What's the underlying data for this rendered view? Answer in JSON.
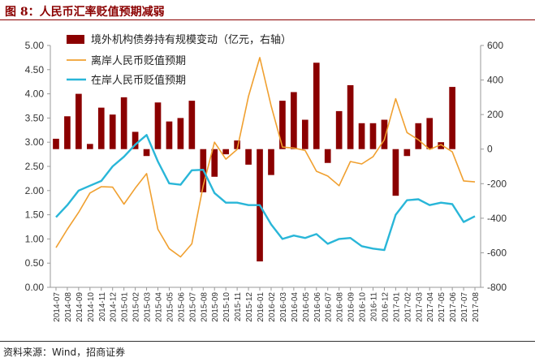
{
  "title": "图 8：人民币汇率贬值预期减弱",
  "source": "资料来源：Wind，招商证券",
  "colors": {
    "bars": "#8b0000",
    "offshore": "#f0a030",
    "onshore": "#29b6d8",
    "title": "#8b0000"
  },
  "chart_data": {
    "type": "bar+line",
    "categories": [
      "2014-07",
      "2014-08",
      "2014-09",
      "2014-10",
      "2014-11",
      "2014-12",
      "2015-01",
      "2015-02",
      "2015-03",
      "2015-04",
      "2015-05",
      "2015-06",
      "2015-07",
      "2015-08",
      "2015-09",
      "2015-10",
      "2015-11",
      "2015-12",
      "2016-01",
      "2016-02",
      "2016-03",
      "2016-04",
      "2016-05",
      "2016-06",
      "2016-07",
      "2016-08",
      "2016-09",
      "2016-10",
      "2016-11",
      "2016-12",
      "2017-01",
      "2017-02",
      "2017-03",
      "2017-04",
      "2017-05",
      "2017-06",
      "2017-07",
      "2017-08"
    ],
    "left_axis": {
      "ticks": [
        "5.00",
        "4.50",
        "4.00",
        "3.50",
        "3.00",
        "2.50",
        "2.00",
        "1.50",
        "1.00",
        "0.50",
        "0.00"
      ],
      "ylim": [
        0,
        5
      ]
    },
    "right_axis": {
      "ticks": [
        "600",
        "400",
        "200",
        "0",
        "-200",
        "-400",
        "-600",
        "-800"
      ],
      "ylim": [
        -800,
        600
      ]
    },
    "legend_position": "top",
    "series": [
      {
        "name": "境外机构债券持有规模变动（亿元，右轴）",
        "kind": "bar",
        "axis": "right",
        "x": [
          "2014-07",
          "2014-08",
          "2014-09",
          "2014-10",
          "2014-11",
          "2014-12",
          "2015-01",
          "2015-02",
          "2015-03",
          "2015-04",
          "2015-05",
          "2015-06",
          "2015-07",
          "2015-08",
          "2015-09",
          "2015-10",
          "2015-11",
          "2015-12",
          "2016-01",
          "2016-02",
          "2016-03",
          "2016-04",
          "2016-05",
          "2016-06",
          "2016-07",
          "2016-08",
          "2016-09",
          "2016-10",
          "2016-11",
          "2016-12",
          "2017-01",
          "2017-02",
          "2017-03",
          "2017-04",
          "2017-05",
          "2017-06",
          "2017-07",
          "2017-08"
        ],
        "values": [
          60,
          190,
          320,
          30,
          240,
          200,
          300,
          100,
          -40,
          270,
          160,
          180,
          280,
          -250,
          -160,
          -30,
          50,
          -90,
          -650,
          -150,
          280,
          330,
          170,
          500,
          -80,
          220,
          370,
          150,
          150,
          170,
          -270,
          -40,
          150,
          180,
          40,
          360,
          0,
          0
        ]
      },
      {
        "name": "离岸人民币贬值预期",
        "kind": "line",
        "axis": "left",
        "x": [
          "2014-07",
          "2014-08",
          "2014-09",
          "2014-10",
          "2014-11",
          "2014-12",
          "2015-01",
          "2015-02",
          "2015-03",
          "2015-04",
          "2015-05",
          "2015-06",
          "2015-07",
          "2015-08",
          "2015-09",
          "2015-10",
          "2015-11",
          "2015-12",
          "2016-01",
          "2016-02",
          "2016-03",
          "2016-04",
          "2016-05",
          "2016-06",
          "2016-07",
          "2016-08",
          "2016-09",
          "2016-10",
          "2016-11",
          "2016-12",
          "2017-01",
          "2017-02",
          "2017-03",
          "2017-04",
          "2017-05",
          "2017-06",
          "2017-07",
          "2017-08"
        ],
        "values": [
          0.82,
          1.2,
          1.55,
          1.95,
          2.08,
          2.07,
          1.72,
          2.05,
          2.35,
          1.2,
          0.8,
          0.63,
          0.9,
          2.1,
          3.0,
          2.65,
          2.85,
          3.95,
          4.75,
          3.75,
          2.9,
          2.88,
          2.83,
          2.4,
          2.3,
          2.1,
          2.6,
          2.55,
          2.7,
          3.05,
          3.9,
          3.2,
          3.05,
          2.85,
          2.95,
          2.8,
          2.2,
          2.18
        ]
      },
      {
        "name": "在岸人民币贬值预期",
        "kind": "line",
        "axis": "left",
        "x": [
          "2014-07",
          "2014-08",
          "2014-09",
          "2014-10",
          "2014-11",
          "2014-12",
          "2015-01",
          "2015-02",
          "2015-03",
          "2015-04",
          "2015-05",
          "2015-06",
          "2015-07",
          "2015-08",
          "2015-09",
          "2015-10",
          "2015-11",
          "2015-12",
          "2016-01",
          "2016-02",
          "2016-03",
          "2016-04",
          "2016-05",
          "2016-06",
          "2016-07",
          "2016-08",
          "2016-09",
          "2016-10",
          "2016-11",
          "2016-12",
          "2017-01",
          "2017-02",
          "2017-03",
          "2017-04",
          "2017-05",
          "2017-06",
          "2017-07",
          "2017-08"
        ],
        "values": [
          1.45,
          1.7,
          2.0,
          2.1,
          2.2,
          2.5,
          2.7,
          2.95,
          3.15,
          2.6,
          2.15,
          2.12,
          2.42,
          2.43,
          1.95,
          1.75,
          1.75,
          1.7,
          1.7,
          1.3,
          1.0,
          1.07,
          1.02,
          1.1,
          0.9,
          1.0,
          1.02,
          0.85,
          0.8,
          0.77,
          1.5,
          1.8,
          1.82,
          1.7,
          1.75,
          1.72,
          1.35,
          1.47
        ]
      }
    ]
  }
}
